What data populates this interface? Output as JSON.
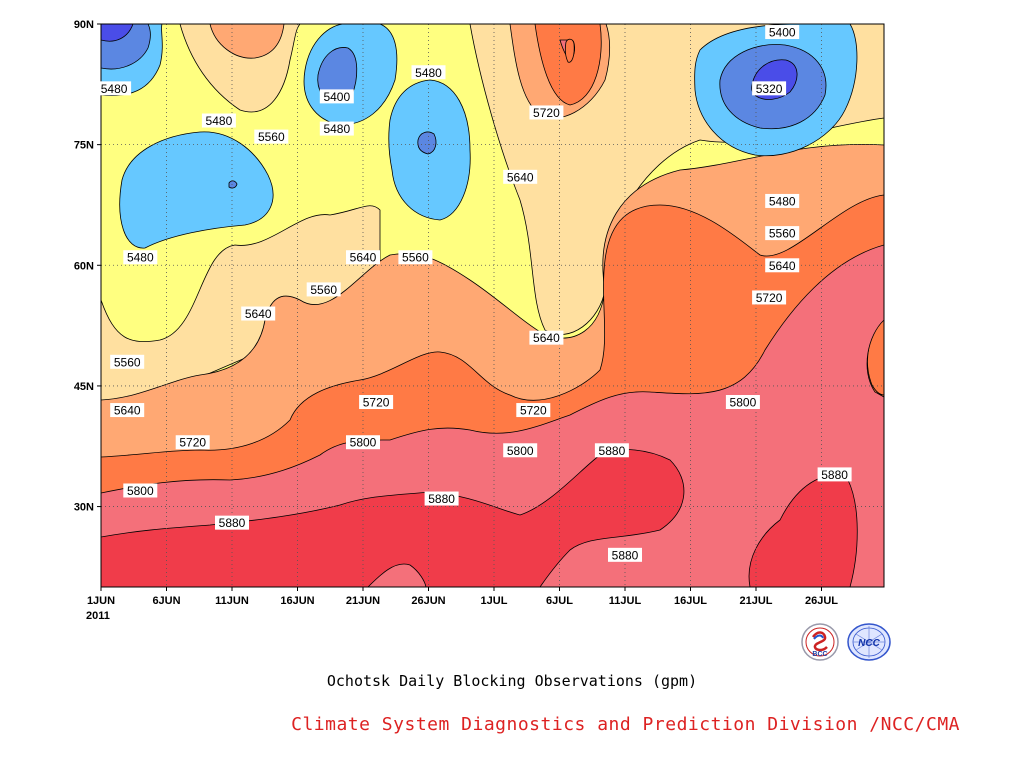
{
  "chart_data": {
    "type": "heatmap",
    "subtype": "filled contour (latitude-time Hovmoller)",
    "title": "Ochotsk Daily Blocking Observations (gpm)",
    "xlabel": "",
    "ylabel": "",
    "year_label": "2011",
    "x_ticks": [
      "1JUN",
      "6JUN",
      "11JUN",
      "16JUN",
      "21JUN",
      "26JUN",
      "1JUL",
      "6JUL",
      "11JUL",
      "16JUL",
      "21JUL",
      "26JUL"
    ],
    "y_ticks": [
      "30N",
      "45N",
      "60N",
      "75N",
      "90N"
    ],
    "xlim": [
      "2011-06-01",
      "2011-07-31"
    ],
    "ylim": [
      20,
      90
    ],
    "contour_levels": [
      5320,
      5400,
      5480,
      5560,
      5640,
      5720,
      5800,
      5880
    ],
    "level_colors": {
      "below_5320": "#4a4de8",
      "5320_5400": "#5b87e2",
      "5400_5480": "#66c8ff",
      "5480_5560": "#ffff80",
      "5560_5640": "#ffe0a0",
      "5640_5720": "#ffa873",
      "5720_5800": "#ff7a45",
      "5800_5880": "#f4707a",
      "above_5880": "#f03c4a"
    },
    "contour_labels": [
      {
        "text": "5480",
        "date": "2011-06-02",
        "lat": 82
      },
      {
        "text": "5480",
        "date": "2011-06-10",
        "lat": 78
      },
      {
        "text": "5560",
        "date": "2011-06-14",
        "lat": 76
      },
      {
        "text": "5400",
        "date": "2011-06-19",
        "lat": 81
      },
      {
        "text": "5480",
        "date": "2011-06-19",
        "lat": 77
      },
      {
        "text": "5480",
        "date": "2011-06-26",
        "lat": 84
      },
      {
        "text": "5720",
        "date": "2011-07-05",
        "lat": 79
      },
      {
        "text": "5640",
        "date": "2011-07-03",
        "lat": 71
      },
      {
        "text": "5400",
        "date": "2011-07-23",
        "lat": 89
      },
      {
        "text": "5320",
        "date": "2011-07-22",
        "lat": 82
      },
      {
        "text": "5480",
        "date": "2011-07-23",
        "lat": 68
      },
      {
        "text": "5560",
        "date": "2011-07-23",
        "lat": 64
      },
      {
        "text": "5640",
        "date": "2011-07-23",
        "lat": 60
      },
      {
        "text": "5720",
        "date": "2011-07-22",
        "lat": 56
      },
      {
        "text": "5480",
        "date": "2011-06-04",
        "lat": 61
      },
      {
        "text": "5560",
        "date": "2011-06-25",
        "lat": 61
      },
      {
        "text": "5640",
        "date": "2011-06-21",
        "lat": 61
      },
      {
        "text": "5560",
        "date": "2011-06-18",
        "lat": 57
      },
      {
        "text": "5640",
        "date": "2011-06-13",
        "lat": 54
      },
      {
        "text": "5640",
        "date": "2011-07-05",
        "lat": 51
      },
      {
        "text": "5560",
        "date": "2011-06-03",
        "lat": 48
      },
      {
        "text": "5640",
        "date": "2011-06-03",
        "lat": 42
      },
      {
        "text": "5720",
        "date": "2011-06-08",
        "lat": 38
      },
      {
        "text": "5720",
        "date": "2011-06-22",
        "lat": 43
      },
      {
        "text": "5720",
        "date": "2011-07-04",
        "lat": 42
      },
      {
        "text": "5800",
        "date": "2011-07-20",
        "lat": 43
      },
      {
        "text": "5800",
        "date": "2011-06-04",
        "lat": 32
      },
      {
        "text": "5800",
        "date": "2011-06-21",
        "lat": 38
      },
      {
        "text": "5800",
        "date": "2011-07-03",
        "lat": 37
      },
      {
        "text": "5880",
        "date": "2011-07-10",
        "lat": 37
      },
      {
        "text": "5880",
        "date": "2011-06-11",
        "lat": 28
      },
      {
        "text": "5880",
        "date": "2011-06-27",
        "lat": 31
      },
      {
        "text": "5880",
        "date": "2011-07-11",
        "lat": 24
      },
      {
        "text": "5880",
        "date": "2011-07-27",
        "lat": 34
      }
    ],
    "grid": true,
    "grid_style": "dotted"
  },
  "footer": {
    "title": "Ochotsk Daily Blocking Observations (gpm)",
    "credit": "Climate System Diagnostics and Prediction Division /NCC/CMA",
    "logos": [
      {
        "icon": "bcc-logo-icon",
        "text": "BCC"
      },
      {
        "icon": "ncc-logo-icon",
        "text": "NCC"
      }
    ]
  }
}
